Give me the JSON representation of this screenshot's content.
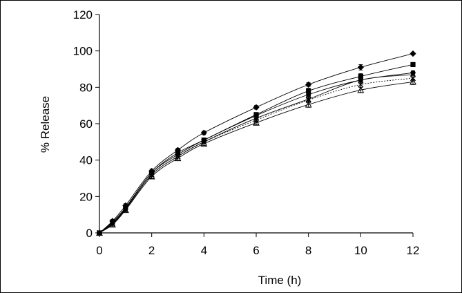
{
  "chart_data": {
    "type": "line",
    "title": "",
    "xlabel": "Time (h)",
    "ylabel": "% Release",
    "xlim": [
      0,
      12
    ],
    "ylim": [
      0,
      120
    ],
    "xticks": [
      0,
      2,
      4,
      6,
      8,
      10,
      12
    ],
    "yticks": [
      0,
      20,
      40,
      60,
      80,
      100,
      120
    ],
    "x": [
      0,
      0.5,
      1,
      2,
      3,
      4,
      6,
      8,
      10,
      12
    ],
    "grid": false,
    "legend": "none",
    "series": [
      {
        "marker": "diamond",
        "line": "solid",
        "color": "#000000",
        "values": [
          0,
          6.5,
          15,
          34,
          45.5,
          55,
          69,
          81.5,
          91,
          98.5
        ],
        "errors": [
          0,
          0.8,
          1,
          1,
          1,
          1,
          1,
          1,
          1.5,
          0.5
        ]
      },
      {
        "marker": "square",
        "line": "solid",
        "color": "#000000",
        "values": [
          0,
          6,
          14,
          33,
          44,
          51,
          65,
          78,
          86,
          92.5
        ],
        "errors": [
          0,
          0.8,
          1,
          1,
          1,
          1,
          1,
          1.5,
          1.5,
          1
        ]
      },
      {
        "marker": "circle",
        "line": "solid",
        "color": "#000000",
        "values": [
          0,
          5.5,
          13.5,
          33,
          43,
          51,
          64.5,
          76,
          84,
          88
        ],
        "errors": [
          0,
          0.8,
          1,
          1,
          1,
          1,
          1,
          1.5,
          1.5,
          1
        ]
      },
      {
        "marker": "asterisk",
        "line": "solid",
        "color": "#000000",
        "values": [
          0,
          5,
          13,
          32,
          42,
          50,
          63,
          73.5,
          84,
          87
        ],
        "errors": [
          0,
          0.8,
          1,
          1,
          1,
          1,
          1,
          1.5,
          2,
          1.5
        ]
      },
      {
        "marker": "x",
        "line": "dotted",
        "color": "#000000",
        "values": [
          0,
          5,
          13,
          32,
          42,
          50,
          62,
          73,
          81.5,
          85
        ],
        "errors": [
          0,
          0.8,
          1,
          1,
          1,
          1,
          1,
          1.5,
          1.5,
          1.5
        ]
      },
      {
        "marker": "triangle",
        "line": "solid",
        "color": "#000000",
        "values": [
          0,
          4.5,
          12.5,
          31,
          41,
          49,
          60.5,
          70.5,
          78.5,
          83
        ],
        "errors": [
          0,
          0.8,
          1,
          1,
          1,
          1,
          1,
          1.5,
          1.5,
          1.5
        ]
      }
    ]
  }
}
